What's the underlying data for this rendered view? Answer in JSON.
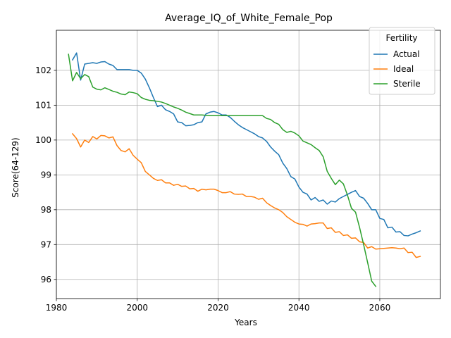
{
  "chart_data": {
    "type": "line",
    "title": "Average_IQ_of_White_Female_Pop",
    "xlabel": "Years",
    "ylabel": "Score(64-129)",
    "xlim": [
      1980,
      2075
    ],
    "ylim": [
      95.45,
      103.15
    ],
    "xticks": [
      1980,
      2000,
      2020,
      2040,
      2060
    ],
    "yticks": [
      96,
      97,
      98,
      99,
      100,
      101,
      102
    ],
    "grid": true,
    "legend": {
      "title": "Fertility",
      "position": "upper right"
    },
    "series": [
      {
        "name": "Actual",
        "color": "#1f77b4",
        "x": [
          1984,
          1985,
          1986,
          1987,
          1988,
          1989,
          1990,
          1991,
          1992,
          1993,
          1994,
          1995,
          1996,
          1997,
          1998,
          1999,
          2000,
          2001,
          2002,
          2003,
          2004,
          2005,
          2006,
          2007,
          2008,
          2009,
          2010,
          2011,
          2012,
          2013,
          2014,
          2015,
          2016,
          2017,
          2018,
          2019,
          2020,
          2021,
          2022,
          2023,
          2024,
          2025,
          2026,
          2027,
          2028,
          2029,
          2030,
          2031,
          2032,
          2033,
          2034,
          2035,
          2036,
          2037,
          2038,
          2039,
          2040,
          2041,
          2042,
          2043,
          2044,
          2045,
          2046,
          2047,
          2048,
          2049,
          2050,
          2051,
          2052,
          2053,
          2054,
          2055,
          2056,
          2057,
          2058,
          2059,
          2060,
          2061,
          2062,
          2063,
          2064,
          2065,
          2066,
          2067,
          2068,
          2069,
          2070
        ],
        "y": [
          102.3,
          102.5,
          101.72,
          102.18,
          102.2,
          102.22,
          102.2,
          102.24,
          102.25,
          102.18,
          102.14,
          102.02,
          102.02,
          102.02,
          102.02,
          102.0,
          102.0,
          101.92,
          101.75,
          101.5,
          101.22,
          100.96,
          101.0,
          100.87,
          100.82,
          100.75,
          100.52,
          100.5,
          100.41,
          100.42,
          100.44,
          100.5,
          100.52,
          100.75,
          100.8,
          100.82,
          100.78,
          100.72,
          100.72,
          100.65,
          100.54,
          100.44,
          100.36,
          100.3,
          100.24,
          100.18,
          100.1,
          100.06,
          99.96,
          99.8,
          99.68,
          99.58,
          99.34,
          99.18,
          98.95,
          98.88,
          98.65,
          98.5,
          98.45,
          98.28,
          98.35,
          98.24,
          98.28,
          98.16,
          98.25,
          98.22,
          98.32,
          98.38,
          98.44,
          98.5,
          98.55,
          98.38,
          98.33,
          98.18,
          98.0,
          98.0,
          97.75,
          97.72,
          97.48,
          97.5,
          97.36,
          97.37,
          97.26,
          97.25,
          97.3,
          97.34,
          97.39
        ]
      },
      {
        "name": "Ideal",
        "color": "#ff7f0e",
        "x": [
          1984,
          1985,
          1986,
          1987,
          1988,
          1989,
          1990,
          1991,
          1992,
          1993,
          1994,
          1995,
          1996,
          1997,
          1998,
          1999,
          2000,
          2001,
          2002,
          2003,
          2004,
          2005,
          2006,
          2007,
          2008,
          2009,
          2010,
          2011,
          2012,
          2013,
          2014,
          2015,
          2016,
          2017,
          2018,
          2019,
          2020,
          2021,
          2022,
          2023,
          2024,
          2025,
          2026,
          2027,
          2028,
          2029,
          2030,
          2031,
          2032,
          2033,
          2034,
          2035,
          2036,
          2037,
          2038,
          2039,
          2040,
          2041,
          2042,
          2043,
          2044,
          2045,
          2046,
          2047,
          2048,
          2049,
          2050,
          2051,
          2052,
          2053,
          2054,
          2055,
          2056,
          2057,
          2058,
          2059,
          2060,
          2061,
          2062,
          2063,
          2064,
          2065,
          2066,
          2067,
          2068,
          2069,
          2070
        ],
        "y": [
          100.18,
          100.04,
          99.8,
          100.0,
          99.93,
          100.1,
          100.03,
          100.13,
          100.12,
          100.06,
          100.09,
          99.84,
          99.7,
          99.66,
          99.75,
          99.56,
          99.45,
          99.35,
          99.1,
          99.0,
          98.9,
          98.84,
          98.86,
          98.77,
          98.77,
          98.7,
          98.73,
          98.67,
          98.68,
          98.6,
          98.61,
          98.53,
          98.59,
          98.57,
          98.59,
          98.59,
          98.55,
          98.49,
          98.49,
          98.52,
          98.45,
          98.44,
          98.45,
          98.38,
          98.38,
          98.36,
          98.3,
          98.33,
          98.2,
          98.12,
          98.05,
          98.0,
          97.92,
          97.8,
          97.72,
          97.64,
          97.59,
          97.58,
          97.53,
          97.59,
          97.6,
          97.62,
          97.62,
          97.46,
          97.48,
          97.35,
          97.37,
          97.26,
          97.28,
          97.18,
          97.19,
          97.08,
          97.06,
          96.9,
          96.94,
          96.87,
          96.88,
          96.89,
          96.9,
          96.91,
          96.9,
          96.88,
          96.9,
          96.77,
          96.78,
          96.63,
          96.66
        ]
      },
      {
        "name": "Sterile",
        "color": "#2ca02c",
        "x": [
          1983,
          1984,
          1985,
          1986,
          1987,
          1988,
          1989,
          1990,
          1991,
          1992,
          1993,
          1994,
          1995,
          1996,
          1997,
          1998,
          1999,
          2000,
          2001,
          2002,
          2003,
          2004,
          2005,
          2006,
          2007,
          2008,
          2009,
          2010,
          2011,
          2012,
          2013,
          2014,
          2015,
          2016,
          2017,
          2018,
          2019,
          2020,
          2021,
          2022,
          2023,
          2024,
          2025,
          2026,
          2027,
          2028,
          2029,
          2030,
          2031,
          2032,
          2033,
          2034,
          2035,
          2036,
          2037,
          2038,
          2039,
          2040,
          2041,
          2042,
          2043,
          2044,
          2045,
          2046,
          2047,
          2048,
          2049,
          2050,
          2051,
          2052,
          2053,
          2054,
          2055,
          2056,
          2057,
          2058,
          2059
        ],
        "y": [
          102.46,
          101.7,
          101.94,
          101.76,
          101.88,
          101.82,
          101.52,
          101.46,
          101.44,
          101.5,
          101.45,
          101.4,
          101.37,
          101.32,
          101.3,
          101.38,
          101.36,
          101.33,
          101.22,
          101.17,
          101.14,
          101.13,
          101.11,
          101.09,
          101.05,
          101.0,
          100.95,
          100.91,
          100.86,
          100.8,
          100.76,
          100.72,
          100.72,
          100.72,
          100.71,
          100.7,
          100.7,
          100.7,
          100.7,
          100.7,
          100.7,
          100.7,
          100.7,
          100.7,
          100.7,
          100.7,
          100.7,
          100.7,
          100.7,
          100.62,
          100.59,
          100.5,
          100.45,
          100.3,
          100.22,
          100.25,
          100.2,
          100.12,
          99.97,
          99.92,
          99.87,
          99.78,
          99.7,
          99.52,
          99.1,
          98.9,
          98.72,
          98.85,
          98.74,
          98.42,
          98.04,
          97.93,
          97.49,
          97.0,
          96.48,
          95.95,
          95.8
        ]
      }
    ]
  }
}
